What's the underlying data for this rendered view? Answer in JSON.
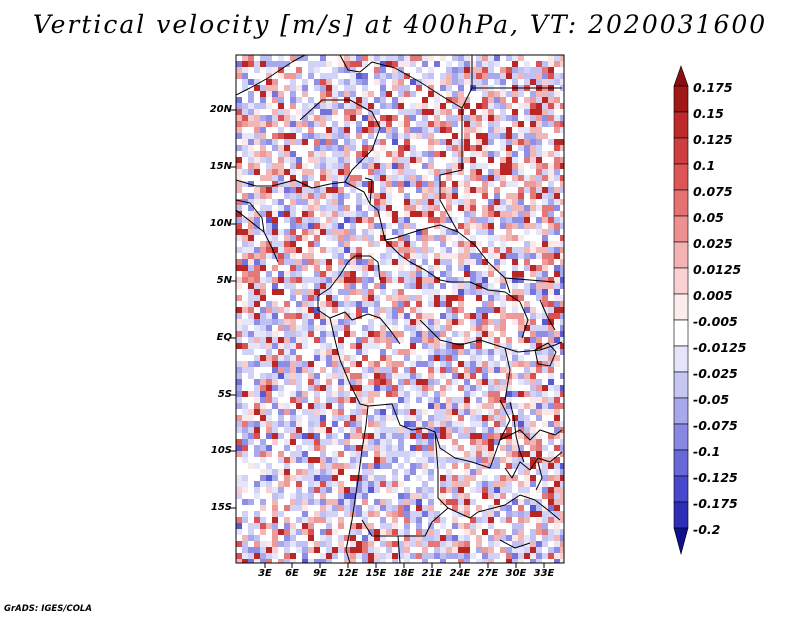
{
  "title": "Vertical velocity [m/s] at 400hPa, VT: 2020031600",
  "map": {
    "y_labels": [
      "20N",
      "15N",
      "10N",
      "5N",
      "EQ",
      "5S",
      "10S",
      "15S"
    ],
    "x_labels": [
      "3E",
      "6E",
      "9E",
      "12E",
      "15E",
      "18E",
      "21E",
      "24E",
      "27E",
      "30E",
      "33E"
    ]
  },
  "colorbar": {
    "labels": [
      "0.175",
      "0.15",
      "0.125",
      "0.1",
      "0.075",
      "0.05",
      "0.025",
      "0.0125",
      "0.005",
      "-0.005",
      "-0.0125",
      "-0.025",
      "-0.05",
      "-0.075",
      "-0.1",
      "-0.125",
      "-0.175",
      "-0.2"
    ],
    "colors": [
      "#a01818",
      "#be2a2a",
      "#cf3e3e",
      "#dc5656",
      "#e57272",
      "#ec9090",
      "#f3b3b3",
      "#f8d2d2",
      "#fcecec",
      "#ffffff",
      "#e4e4fa",
      "#c6c6f2",
      "#a8a8ec",
      "#8888e2",
      "#6868d8",
      "#4848cc",
      "#2e2eb8",
      "#1a1a9c"
    ],
    "top_arrow_color": "#8a1010",
    "bottom_arrow_color": "#10108a"
  },
  "credit": "GrADS: IGES/COLA"
}
